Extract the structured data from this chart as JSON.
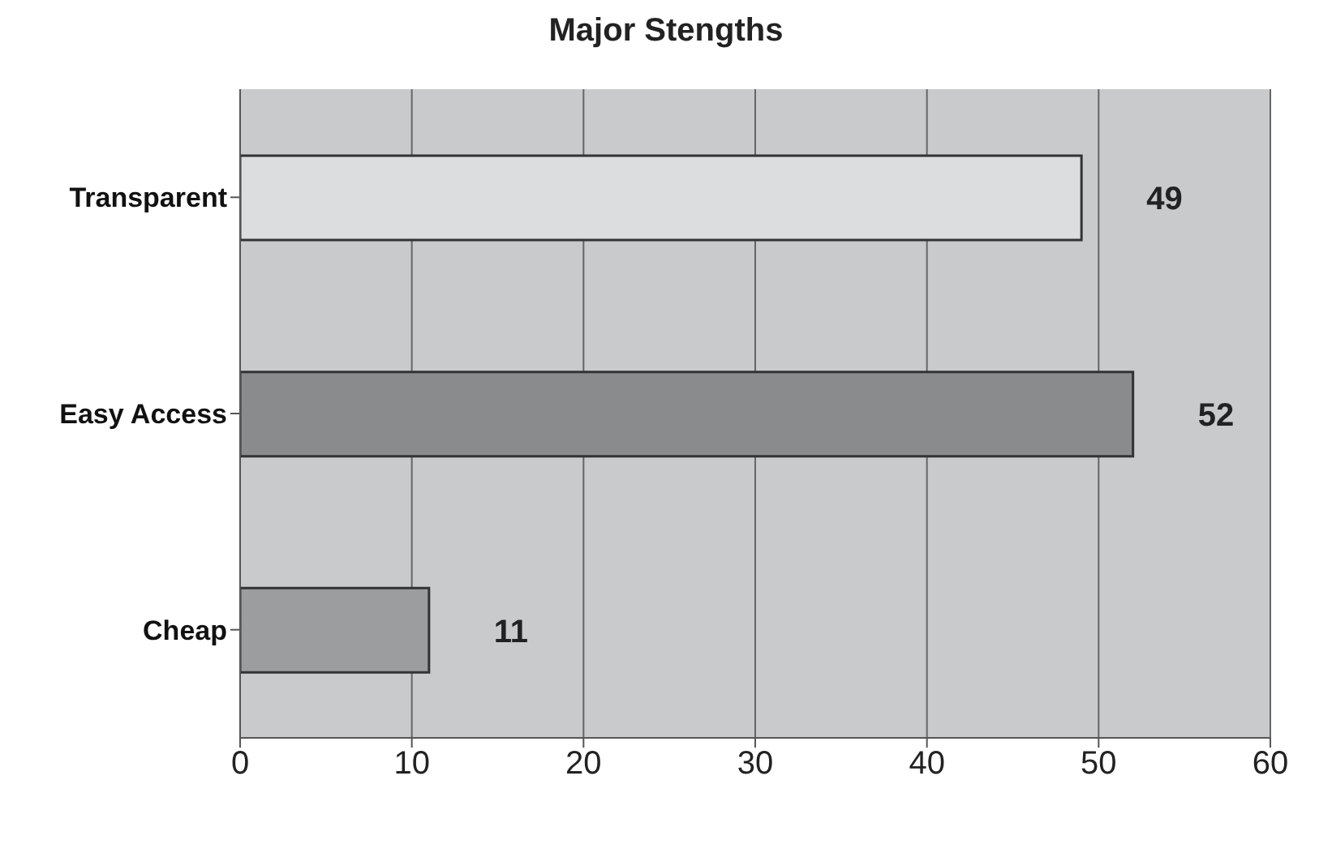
{
  "chart_data": {
    "type": "bar",
    "orientation": "horizontal",
    "title": "Major Stengths",
    "categories": [
      "Transparent",
      "Easy Access",
      "Cheap"
    ],
    "values": [
      49,
      52,
      11
    ],
    "colors": [
      "#dcdddf",
      "#8a8b8d",
      "#9c9d9f"
    ],
    "xlim": [
      0,
      60
    ],
    "xticks": [
      0,
      10,
      20,
      30,
      40,
      50,
      60
    ],
    "grid": "x",
    "data_labels": true
  }
}
